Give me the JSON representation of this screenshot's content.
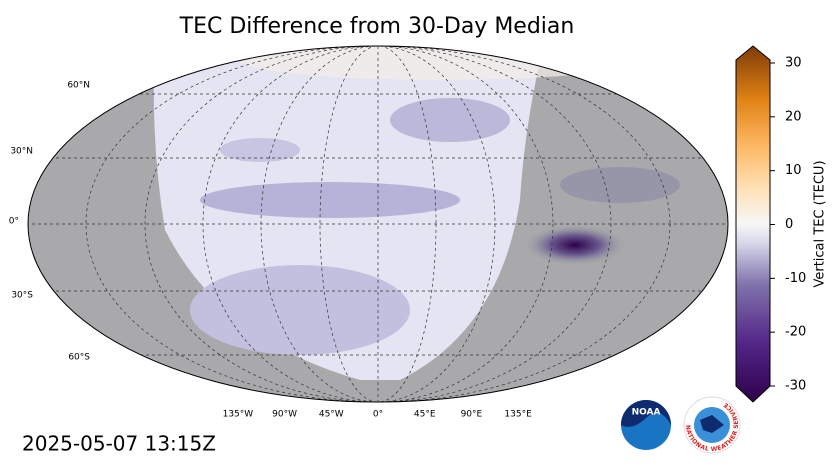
{
  "title": "TEC Difference from 30-Day Median",
  "map": {
    "lat_labels": [
      "60°N",
      "30°N",
      "0°",
      "30°S",
      "60°S"
    ],
    "lon_labels": [
      "135°W",
      "90°W",
      "45°W",
      "0°",
      "45°E",
      "90°E",
      "135°E"
    ]
  },
  "colorbar": {
    "label": "Vertical TEC (TECU)",
    "lim": [
      -30,
      30
    ],
    "ticks": [
      -30,
      -20,
      -10,
      0,
      10,
      20,
      30
    ]
  },
  "timestamp": "2025-05-07 13:15Z",
  "logos": {
    "noaa": "NOAA",
    "nws": "NATIONAL WEATHER SERVICE"
  }
}
